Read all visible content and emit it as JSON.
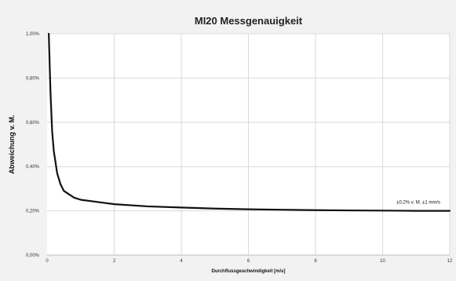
{
  "chart_data": {
    "type": "line",
    "title": "MI20 Messgenauigkeit",
    "xlabel": "Durchflussgeschwindigkeit [m/s]",
    "ylabel": "Abweichung v. M.",
    "xlim": [
      0,
      12
    ],
    "ylim": [
      0,
      1
    ],
    "x_ticks": [
      "0",
      "2",
      "4",
      "6",
      "8",
      "10",
      "12"
    ],
    "y_ticks": [
      "0,00%",
      "0,20%",
      "0,40%",
      "0,60%",
      "0,80%",
      "1,00%"
    ],
    "grid": true,
    "series": [
      {
        "x": [
          0.05,
          0.1,
          0.15,
          0.2,
          0.3,
          0.4,
          0.5,
          0.6,
          0.8,
          1,
          1.5,
          2,
          3,
          4,
          5,
          6,
          7,
          8,
          9,
          10,
          11,
          12
        ],
        "y": [
          1.0,
          0.74,
          0.56,
          0.47,
          0.37,
          0.32,
          0.29,
          0.28,
          0.26,
          0.25,
          0.24,
          0.23,
          0.22,
          0.215,
          0.21,
          0.207,
          0.205,
          0.203,
          0.202,
          0.201,
          0.2,
          0.2
        ]
      }
    ],
    "annotation": "±0,2% v. M. ±1 mm/s",
    "colors": {
      "line": "#111111",
      "grid": "#d9d9d9",
      "plot_background": "#ffffff"
    }
  }
}
